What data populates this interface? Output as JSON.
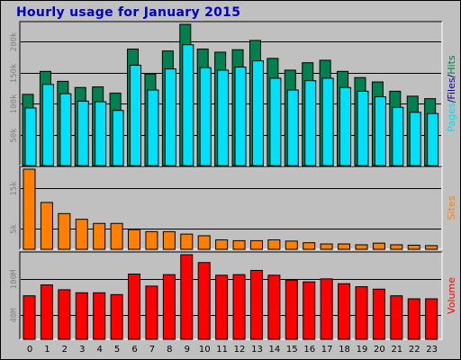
{
  "title": "Hourly usage for January 2015",
  "colors": {
    "pages": "#007f50",
    "files": "#00e0f8",
    "sites": "#ff8000",
    "volume": "#ff0000",
    "hits": "#007f50",
    "separator": "#000080",
    "panel_bg": "#c0c0c0",
    "title": "#0000c0"
  },
  "chart_data": [
    {
      "type": "bar",
      "name": "hits-files-panel",
      "categories": [
        "0",
        "1",
        "2",
        "3",
        "4",
        "5",
        "6",
        "7",
        "8",
        "9",
        "10",
        "11",
        "12",
        "13",
        "14",
        "15",
        "16",
        "17",
        "18",
        "19",
        "20",
        "21",
        "22",
        "23"
      ],
      "series": [
        {
          "name": "Hits",
          "values": [
            115,
            152,
            136,
            126,
            127,
            117,
            188,
            148,
            185,
            228,
            188,
            183,
            187,
            202,
            173,
            154,
            166,
            170,
            152,
            142,
            135,
            120,
            112,
            108
          ]
        },
        {
          "name": "Files",
          "values": [
            93,
            131,
            116,
            104,
            103,
            89,
            162,
            122,
            156,
            195,
            158,
            154,
            159,
            169,
            141,
            122,
            137,
            141,
            126,
            120,
            111,
            94,
            86,
            84
          ]
        }
      ],
      "ylim": [
        0,
        228
      ],
      "ytick_values": [
        50,
        100,
        150,
        200
      ],
      "ytick_labels": [
        "50k",
        "100k",
        "150k",
        "200k"
      ],
      "side_label": [
        {
          "text": "Pages",
          "color": "#00e0f8"
        },
        {
          "text": "/",
          "color": "#000080"
        },
        {
          "text": "Files",
          "color": "#0000c0"
        },
        {
          "text": "/",
          "color": "#000080"
        },
        {
          "text": "Hits",
          "color": "#007f50"
        }
      ]
    },
    {
      "type": "bar",
      "name": "sites-panel",
      "categories": [
        "0",
        "1",
        "2",
        "3",
        "4",
        "5",
        "6",
        "7",
        "8",
        "9",
        "10",
        "11",
        "12",
        "13",
        "14",
        "15",
        "16",
        "17",
        "18",
        "19",
        "20",
        "21",
        "22",
        "23"
      ],
      "series": [
        {
          "name": "Sites",
          "values": [
            19.5,
            11.4,
            8.7,
            7.3,
            6.3,
            6.3,
            4.8,
            4.3,
            4.3,
            3.7,
            3.3,
            2.3,
            2.1,
            2.1,
            2.3,
            2.0,
            1.6,
            1.3,
            1.3,
            1.1,
            1.5,
            1.1,
            1.0,
            0.9
          ]
        }
      ],
      "ylim": [
        0,
        19.5
      ],
      "ytick_values": [
        5,
        15
      ],
      "ytick_labels": [
        "5k",
        "15k"
      ],
      "side_label": [
        {
          "text": "Sites",
          "color": "#ff8000"
        }
      ]
    },
    {
      "type": "bar",
      "name": "volume-panel",
      "categories": [
        "0",
        "1",
        "2",
        "3",
        "4",
        "5",
        "6",
        "7",
        "8",
        "9",
        "10",
        "11",
        "12",
        "13",
        "14",
        "15",
        "16",
        "17",
        "18",
        "19",
        "20",
        "21",
        "22",
        "23"
      ],
      "series": [
        {
          "name": "Volume",
          "values": [
            72,
            90,
            82,
            77,
            77,
            74,
            108,
            88,
            107,
            140,
            127,
            106,
            107,
            114,
            106,
            98,
            95,
            100,
            92,
            87,
            83,
            72,
            67,
            67
          ]
        }
      ],
      "ylim": [
        0,
        140
      ],
      "ytick_values": [
        40,
        100
      ],
      "ytick_labels": [
        "40M",
        "100M"
      ],
      "side_label": [
        {
          "text": "Volume",
          "color": "#ff0000"
        }
      ]
    }
  ]
}
